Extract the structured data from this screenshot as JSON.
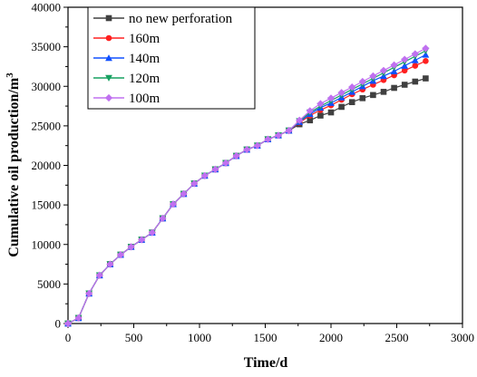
{
  "chart_data": {
    "type": "line",
    "xlabel": "Time/d",
    "ylabel": "Cumulative oil production/m",
    "ylabel_superscript": "3",
    "xlim": [
      0,
      3000
    ],
    "ylim": [
      0,
      40000
    ],
    "x_ticks": [
      "0",
      "500",
      "1000",
      "1500",
      "2000",
      "2500",
      "3000"
    ],
    "y_ticks": [
      "0",
      "5000",
      "10000",
      "15000",
      "20000",
      "25000",
      "30000",
      "35000",
      "40000"
    ],
    "grid": false,
    "legend_position": "top-left",
    "shared_x": [
      0,
      80,
      160,
      240,
      320,
      400,
      480,
      560,
      640,
      720,
      800,
      880,
      960,
      1040,
      1120,
      1200,
      1280,
      1360,
      1440,
      1520,
      1600,
      1680
    ],
    "shared_y": [
      0,
      700,
      3800,
      6100,
      7500,
      8700,
      9700,
      10600,
      11500,
      13300,
      15100,
      16400,
      17700,
      18700,
      19500,
      20300,
      21200,
      22000,
      22500,
      23300,
      23800,
      24400
    ],
    "series": [
      {
        "name": "no new perforation",
        "color": "#404040",
        "marker": "square",
        "x": [
          1760,
          1840,
          1920,
          2000,
          2080,
          2160,
          2240,
          2320,
          2400,
          2480,
          2560,
          2640,
          2720
        ],
        "y": [
          25200,
          25700,
          26300,
          26700,
          27400,
          28000,
          28500,
          28900,
          29300,
          29800,
          30200,
          30600,
          31000
        ]
      },
      {
        "name": "160m",
        "color": "#ff2020",
        "marker": "circle",
        "x": [
          1760,
          1840,
          1920,
          2000,
          2080,
          2160,
          2240,
          2320,
          2400,
          2480,
          2560,
          2640,
          2720
        ],
        "y": [
          25400,
          26300,
          27000,
          27600,
          28300,
          29000,
          29600,
          30200,
          30800,
          31400,
          32000,
          32600,
          33200
        ]
      },
      {
        "name": "140m",
        "color": "#1050ff",
        "marker": "triangle-up",
        "x": [
          1760,
          1840,
          1920,
          2000,
          2080,
          2160,
          2240,
          2320,
          2400,
          2480,
          2560,
          2640,
          2720
        ],
        "y": [
          25500,
          26500,
          27300,
          27900,
          28600,
          29300,
          30000,
          30700,
          31300,
          31900,
          32600,
          33300,
          34000
        ]
      },
      {
        "name": "120m",
        "color": "#16a060",
        "marker": "triangle-down",
        "x": [
          1760,
          1840,
          1920,
          2000,
          2080,
          2160,
          2240,
          2320,
          2400,
          2480,
          2560,
          2640,
          2720
        ],
        "y": [
          25600,
          26700,
          27500,
          28200,
          28900,
          29600,
          30300,
          31000,
          31700,
          32400,
          33100,
          33800,
          34500
        ]
      },
      {
        "name": "100m",
        "color": "#c070f0",
        "marker": "diamond",
        "x": [
          1760,
          1840,
          1920,
          2000,
          2080,
          2160,
          2240,
          2320,
          2400,
          2480,
          2560,
          2640,
          2720
        ],
        "y": [
          25700,
          26900,
          27800,
          28500,
          29200,
          29900,
          30600,
          31300,
          32000,
          32700,
          33400,
          34100,
          34800
        ]
      }
    ]
  }
}
